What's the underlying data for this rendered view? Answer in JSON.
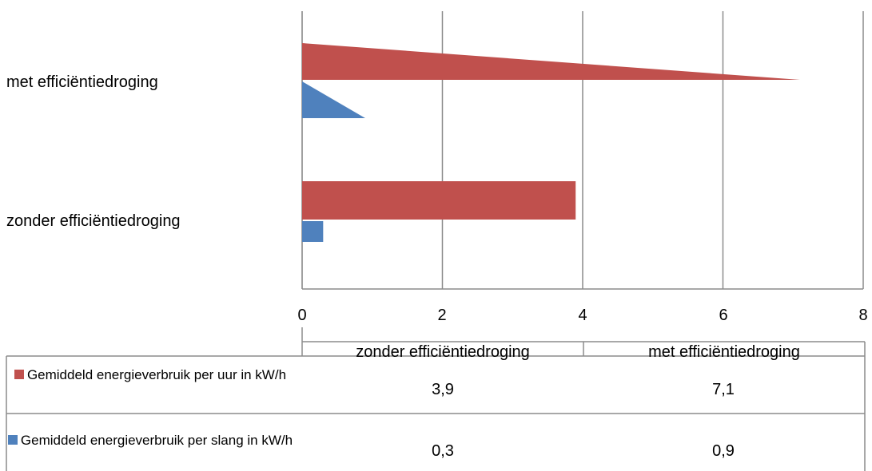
{
  "chart_data": {
    "type": "bar",
    "orientation": "horizontal",
    "categories": [
      "met efficiëntiedroging",
      "zonder efficiëntiedroging"
    ],
    "table_columns": [
      "zonder efficiëntiedroging",
      "met efficiëntiedroging"
    ],
    "series": [
      {
        "name": "Gemiddeld energieverbruik per uur in kW/h",
        "color": "#c0504d",
        "values": [
          7.1,
          3.9
        ],
        "table_values": [
          "3,9",
          "7,1"
        ]
      },
      {
        "name": "Gemiddeld energieverbruik per slang in kW/h",
        "color": "#4f81bd",
        "values": [
          0.9,
          0.3
        ],
        "table_values": [
          "0,3",
          "0,9"
        ]
      }
    ],
    "xlim": [
      0,
      8
    ],
    "xticks": [
      "0",
      "2",
      "4",
      "6",
      "8"
    ],
    "grid": true,
    "legend_placement": "data-table"
  }
}
